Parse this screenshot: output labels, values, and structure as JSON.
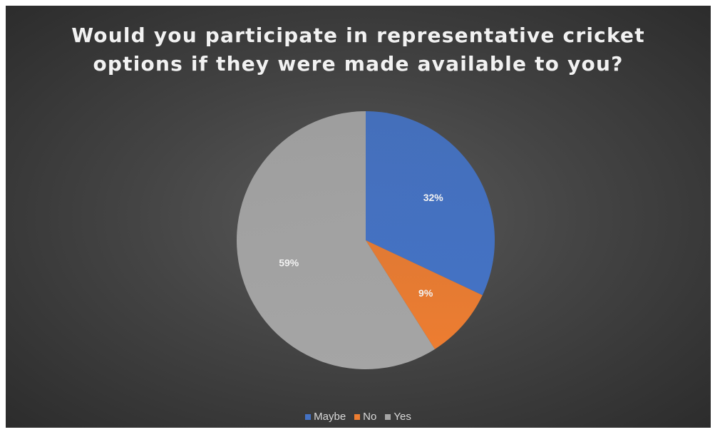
{
  "chart_data": {
    "type": "pie",
    "title_lines": [
      "Would you participate in representative cricket",
      "options if they were made available to you?"
    ],
    "categories": [
      "Maybe",
      "No",
      "Yes"
    ],
    "values": [
      32,
      9,
      59
    ],
    "labels": [
      "32%",
      "9%",
      "59%"
    ],
    "colors": [
      "#4472C4",
      "#ED7D31",
      "#A5A5A5"
    ],
    "start_angle_deg": 0,
    "direction": "clockwise",
    "legend_position": "bottom",
    "background": "dark-gray-radial"
  }
}
